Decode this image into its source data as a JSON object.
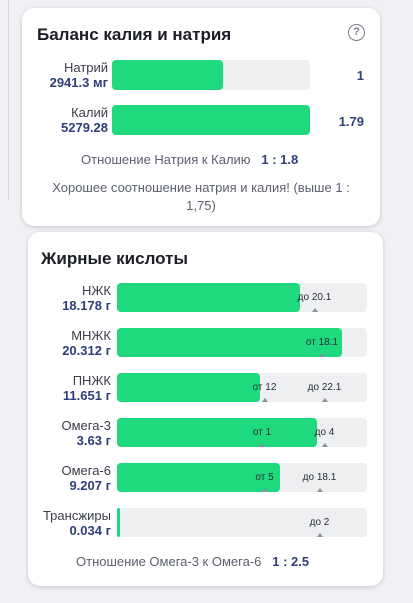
{
  "balance": {
    "title": "Баланс калия и натрия",
    "help_icon": "question-circle-icon",
    "rows": [
      {
        "name": "Натрий",
        "value": "2941.3 мг",
        "fill_fraction": 0.56,
        "ratio": "1"
      },
      {
        "name": "Калий",
        "value": "5279.28",
        "fill_fraction": 1.0,
        "ratio": "1.79"
      }
    ],
    "ratio_label": "Отношение Натрия к Калию",
    "ratio_value": "1 : 1.8",
    "note": "Хорошее соотношение натрия и калия! (выше 1 : 1,75)"
  },
  "fatty": {
    "title": "Жирные кислоты",
    "rows": [
      {
        "name": "НЖК",
        "value": "18.178 г",
        "fill_fraction": 0.73,
        "min_label": "",
        "max_label": "до 20.1",
        "max_fraction": 0.79
      },
      {
        "name": "МНЖК",
        "value": "20.312 г",
        "fill_fraction": 0.9,
        "min_label": "от 18.1",
        "min_fraction": 0.82,
        "max_label": "",
        "max_fraction": null
      },
      {
        "name": "ПНЖК",
        "value": "11.651 г",
        "fill_fraction": 0.57,
        "min_label": "от 12",
        "min_fraction": 0.59,
        "max_label": "до 22.1",
        "max_fraction": 0.83
      },
      {
        "name": "Омега-3",
        "value": "3.63 г",
        "fill_fraction": 0.8,
        "min_label": "от 1",
        "min_fraction": 0.58,
        "max_label": "до 4",
        "max_fraction": 0.83
      },
      {
        "name": "Омега-6",
        "value": "9.207 г",
        "fill_fraction": 0.65,
        "min_label": "от 5",
        "min_fraction": 0.59,
        "max_label": "до 18.1",
        "max_fraction": 0.81
      },
      {
        "name": "Трансжиры",
        "value": "0.034 г",
        "fill_fraction": 0.01,
        "min_label": "",
        "max_label": "до 2",
        "max_fraction": 0.81
      }
    ],
    "ratio_label": "Отношение Омега-3 к Омега-6",
    "ratio_value": "1 : 2.5"
  },
  "colors": {
    "accent": "#1ed97e",
    "track": "#eeeff1",
    "value": "#2f3f7a"
  }
}
